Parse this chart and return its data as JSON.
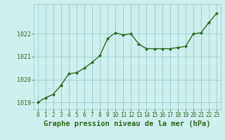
{
  "x": [
    0,
    1,
    2,
    3,
    4,
    5,
    6,
    7,
    8,
    9,
    10,
    11,
    12,
    13,
    14,
    15,
    16,
    17,
    18,
    19,
    20,
    21,
    22,
    23
  ],
  "y": [
    1019.0,
    1019.2,
    1019.35,
    1019.75,
    1020.25,
    1020.3,
    1020.5,
    1020.75,
    1021.05,
    1021.8,
    1022.05,
    1021.95,
    1022.0,
    1021.55,
    1021.35,
    1021.35,
    1021.35,
    1021.35,
    1021.4,
    1021.45,
    1022.0,
    1022.05,
    1022.5,
    1022.9
  ],
  "line_color": "#2d6b1e",
  "marker_color": "#2d6b1e",
  "bg_color": "#d0eeee",
  "grid_color": "#99cccc",
  "text_color": "#2d6b1e",
  "title": "Graphe pression niveau de la mer (hPa)",
  "ylim": [
    1018.7,
    1023.3
  ],
  "xlim": [
    -0.5,
    23.5
  ],
  "yticks": [
    1019,
    1020,
    1021,
    1022
  ],
  "xtick_labels": [
    "0",
    "1",
    "2",
    "3",
    "4",
    "5",
    "6",
    "7",
    "8",
    "9",
    "10",
    "11",
    "12",
    "13",
    "14",
    "15",
    "16",
    "17",
    "18",
    "19",
    "20",
    "21",
    "22",
    "23"
  ],
  "title_fontsize": 7.5,
  "tick_fontsize": 6.0,
  "linewidth": 1.0,
  "markersize": 2.2
}
